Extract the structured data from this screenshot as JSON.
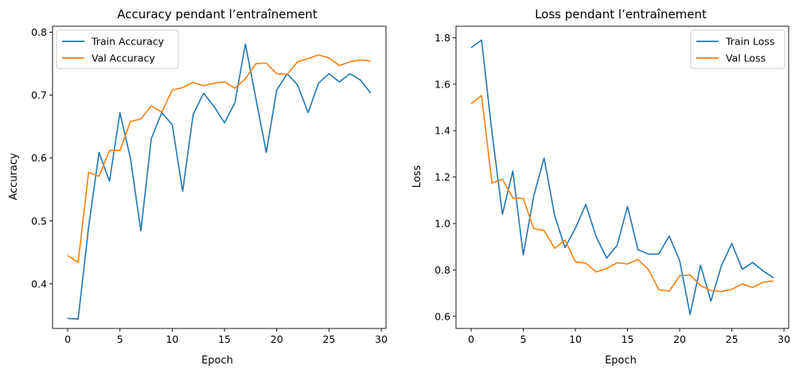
{
  "chart_data": [
    {
      "type": "line",
      "title": "Accuracy pendant l’entraînement",
      "xlabel": "Epoch",
      "ylabel": "Accuracy",
      "xlim": [
        -1.45,
        30.45
      ],
      "ylim": [
        0.329,
        0.8095
      ],
      "xticks": [
        0,
        5,
        10,
        15,
        20,
        25,
        30
      ],
      "yticks": [
        0.4,
        0.5,
        0.6,
        0.7,
        0.8
      ],
      "ytick_labels": [
        "0.4",
        "0.5",
        "0.6",
        "0.7",
        "0.8"
      ],
      "legend_position": "upper left",
      "x": [
        0,
        1,
        2,
        3,
        4,
        5,
        6,
        7,
        8,
        9,
        10,
        11,
        12,
        13,
        14,
        15,
        16,
        17,
        18,
        19,
        20,
        21,
        22,
        23,
        24,
        25,
        26,
        27,
        28,
        29
      ],
      "series": [
        {
          "name": "Train Accuracy",
          "color": "#1f77b4",
          "values": [
            0.345,
            0.344,
            0.49,
            0.609,
            0.563,
            0.672,
            0.6,
            0.484,
            0.631,
            0.672,
            0.653,
            0.547,
            0.669,
            0.703,
            0.682,
            0.656,
            0.688,
            0.781,
            0.695,
            0.609,
            0.708,
            0.734,
            0.716,
            0.672,
            0.719,
            0.734,
            0.721,
            0.734,
            0.724,
            0.703
          ]
        },
        {
          "name": "Val Accuracy",
          "color": "#ff7f0e",
          "values": [
            0.445,
            0.434,
            0.577,
            0.571,
            0.612,
            0.612,
            0.658,
            0.662,
            0.683,
            0.673,
            0.708,
            0.712,
            0.72,
            0.715,
            0.719,
            0.721,
            0.711,
            0.726,
            0.75,
            0.751,
            0.734,
            0.733,
            0.753,
            0.758,
            0.764,
            0.759,
            0.747,
            0.753,
            0.756,
            0.754
          ]
        }
      ]
    },
    {
      "type": "line",
      "title": "Loss pendant l’entraînement",
      "xlabel": "Epoch",
      "ylabel": "Loss",
      "xlim": [
        -1.45,
        30.45
      ],
      "ylim": [
        0.548,
        1.8495
      ],
      "xticks": [
        0,
        5,
        10,
        15,
        20,
        25,
        30
      ],
      "yticks": [
        0.6,
        0.8,
        1.0,
        1.2,
        1.4,
        1.6,
        1.8
      ],
      "ytick_labels": [
        "0.6",
        "0.8",
        "1.0",
        "1.2",
        "1.4",
        "1.6",
        "1.8"
      ],
      "legend_position": "upper right",
      "x": [
        0,
        1,
        2,
        3,
        4,
        5,
        6,
        7,
        8,
        9,
        10,
        11,
        12,
        13,
        14,
        15,
        16,
        17,
        18,
        19,
        20,
        21,
        22,
        23,
        24,
        25,
        26,
        27,
        28,
        29
      ],
      "series": [
        {
          "name": "Train Loss",
          "color": "#1f77b4",
          "values": [
            1.757,
            1.79,
            1.392,
            1.04,
            1.226,
            0.865,
            1.118,
            1.282,
            1.036,
            0.896,
            0.98,
            1.082,
            0.942,
            0.851,
            0.906,
            1.073,
            0.887,
            0.868,
            0.869,
            0.946,
            0.84,
            0.608,
            0.82,
            0.666,
            0.818,
            0.914,
            0.803,
            0.832,
            0.796,
            0.766
          ]
        },
        {
          "name": "Val Loss",
          "color": "#ff7f0e",
          "values": [
            1.516,
            1.551,
            1.174,
            1.191,
            1.11,
            1.108,
            0.978,
            0.97,
            0.893,
            0.929,
            0.835,
            0.829,
            0.791,
            0.806,
            0.831,
            0.826,
            0.845,
            0.802,
            0.715,
            0.709,
            0.775,
            0.778,
            0.733,
            0.711,
            0.707,
            0.717,
            0.74,
            0.725,
            0.747,
            0.753
          ]
        }
      ]
    }
  ]
}
